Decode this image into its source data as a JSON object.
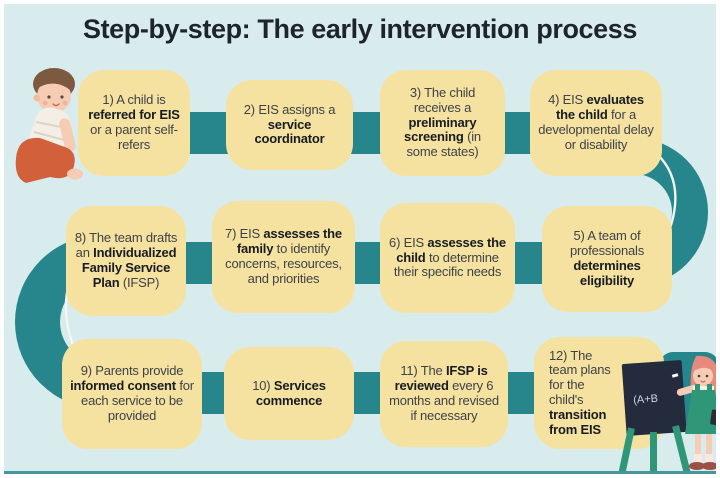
{
  "title": "Step-by-step: The early intervention process",
  "colors": {
    "background": "#d9eced",
    "box_fill": "#f6e2a0",
    "flow_teal": "#26868b",
    "illustration_green": "#2f9678",
    "title_text": "#1e242b",
    "body_text": "#3d4247",
    "bold_text": "#171c22"
  },
  "steps": [
    {
      "id": 1,
      "parts": [
        {
          "t": "1) A child is ",
          "b": false
        },
        {
          "t": "referred for EIS",
          "b": true
        },
        {
          "t": " or a parent self-refers",
          "b": false
        }
      ]
    },
    {
      "id": 2,
      "parts": [
        {
          "t": "2) EIS assigns a ",
          "b": false
        },
        {
          "t": "service coordinator",
          "b": true
        }
      ]
    },
    {
      "id": 3,
      "parts": [
        {
          "t": "3) The child receives a ",
          "b": false
        },
        {
          "t": "preliminary screening",
          "b": true
        },
        {
          "t": " (in some states)",
          "b": false
        }
      ]
    },
    {
      "id": 4,
      "parts": [
        {
          "t": "4) EIS ",
          "b": false
        },
        {
          "t": "evaluates the child",
          "b": true
        },
        {
          "t": " for a developmental delay or disability",
          "b": false
        }
      ]
    },
    {
      "id": 5,
      "parts": [
        {
          "t": "5) A team of professionals ",
          "b": false
        },
        {
          "t": "determines eligibility",
          "b": true
        }
      ]
    },
    {
      "id": 6,
      "parts": [
        {
          "t": "6) EIS ",
          "b": false
        },
        {
          "t": "assesses the child",
          "b": true
        },
        {
          "t": " to determine their specific needs",
          "b": false
        }
      ]
    },
    {
      "id": 7,
      "parts": [
        {
          "t": "7) EIS ",
          "b": false
        },
        {
          "t": "assesses the family",
          "b": true
        },
        {
          "t": " to identify concerns, resources, and priorities",
          "b": false
        }
      ]
    },
    {
      "id": 8,
      "parts": [
        {
          "t": "8) The team drafts an ",
          "b": false
        },
        {
          "t": "Individualized Family Service Plan",
          "b": true
        },
        {
          "t": " (IFSP)",
          "b": false
        }
      ]
    },
    {
      "id": 9,
      "parts": [
        {
          "t": "9) Parents provide ",
          "b": false
        },
        {
          "t": "informed consent",
          "b": true
        },
        {
          "t": " for each service to be provided",
          "b": false
        }
      ]
    },
    {
      "id": 10,
      "parts": [
        {
          "t": "10) ",
          "b": false
        },
        {
          "t": "Services commence",
          "b": true
        }
      ]
    },
    {
      "id": 11,
      "parts": [
        {
          "t": "11) The ",
          "b": false
        },
        {
          "t": "IFSP is reviewed",
          "b": true
        },
        {
          "t": " every 6 months and revised if necessary",
          "b": false
        }
      ]
    },
    {
      "id": 12,
      "parts": [
        {
          "t": "12) The team plans for the child's ",
          "b": false
        },
        {
          "t": "transition from EIS",
          "b": true
        }
      ]
    }
  ],
  "illustrations": {
    "baby": "crawling-baby",
    "teacher": "teacher-writing-on-chalkboard",
    "chalkboard_text": "(A+B"
  }
}
